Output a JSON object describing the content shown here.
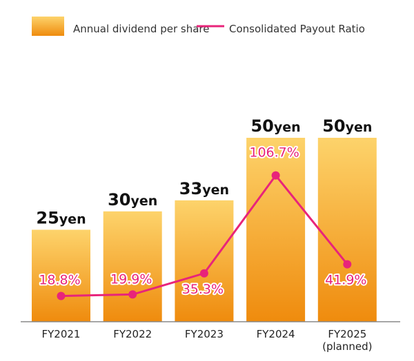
{
  "chart_data": {
    "type": "bar",
    "title": "",
    "categories": [
      "FY2021",
      "FY2022",
      "FY2023",
      "FY2024",
      "FY2025"
    ],
    "category_sublabels": [
      "",
      "",
      "",
      "",
      "(planned)"
    ],
    "series": [
      {
        "name": "Annual dividend per share",
        "type": "bar",
        "unit": "yen",
        "values": [
          25,
          30,
          33,
          50,
          50
        ],
        "labels": [
          "25",
          "30",
          "33",
          "50",
          "50"
        ],
        "color_top": "#fdd36b",
        "color_bottom": "#ef8b0d"
      },
      {
        "name": "Consolidated Payout Ratio",
        "type": "line",
        "unit": "%",
        "values": [
          18.8,
          19.9,
          35.3,
          106.7,
          41.9
        ],
        "labels": [
          "18.8%",
          "19.9%",
          "35.3%",
          "106.7%",
          "41.9%"
        ],
        "color": "#e8247a"
      }
    ],
    "xlabel": "",
    "ylabel": "",
    "ylim_bar": [
      0,
      50
    ],
    "ylim_line": [
      0,
      106.7
    ],
    "grid": false,
    "legend_position": "top"
  }
}
